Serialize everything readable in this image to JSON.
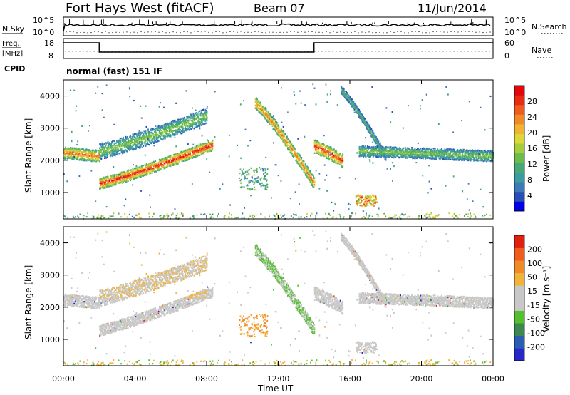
{
  "header": {
    "title": "Fort Hays West (fitACF)",
    "beam": "Beam 07",
    "date": "11/Jun/2014"
  },
  "nsky_panel": {
    "left_label": "N.Sky",
    "left_ticks": [
      "10^5",
      "10^0"
    ],
    "right_label": "N.Search",
    "right_ticks": [
      "10^5",
      "10^0"
    ]
  },
  "freq_panel": {
    "left_label_line1": "Freq.",
    "left_label_line2": "[MHz]",
    "left_ticks": [
      "18",
      "8"
    ],
    "right_label": "Nave",
    "right_ticks": [
      "60",
      "0"
    ],
    "cpid_label": "CPID",
    "cpid_text": "normal (fast) 151 IF"
  },
  "chart_data": [
    {
      "type": "heatmap",
      "name": "power",
      "ylabel": "Slant Range [km]",
      "yticks": [
        "4000",
        "3000",
        "2000",
        "1000"
      ],
      "ylim": [
        180,
        4500
      ],
      "xlim": [
        0,
        24
      ],
      "colorbar": {
        "label": "Power [dB]",
        "ticks": [
          "28",
          "24",
          "20",
          "16",
          "12",
          "8",
          "4"
        ],
        "colors": [
          "#0000e8",
          "#2850b4",
          "#3c7ab8",
          "#3c9ca0",
          "#4aa876",
          "#6cbc4c",
          "#a6cd3c",
          "#dcd83a",
          "#f0b432",
          "#f08a28",
          "#ee5c1e",
          "#e82c14",
          "#e00808"
        ]
      },
      "bands": [
        {
          "t0": 0.0,
          "t1": 2.0,
          "r_start": 2250,
          "r_end": 2150,
          "width": 280,
          "peak": 24
        },
        {
          "t0": 2.0,
          "t1": 8.3,
          "r_start": 1300,
          "r_end": 2500,
          "width": 260,
          "peak": 28
        },
        {
          "t0": 2.0,
          "t1": 8.0,
          "r_start": 2300,
          "r_end": 3400,
          "width": 380,
          "peak": 14
        },
        {
          "t0": 10.7,
          "t1": 14.0,
          "r_start": 3800,
          "r_end": 1300,
          "width": 280,
          "peak": 24
        },
        {
          "t0": 14.0,
          "t1": 15.6,
          "r_start": 2450,
          "r_end": 2000,
          "width": 320,
          "peak": 27
        },
        {
          "t0": 15.5,
          "t1": 18.0,
          "r_start": 4200,
          "r_end": 2100,
          "width": 180,
          "peak": 12
        },
        {
          "t0": 16.5,
          "t1": 24.0,
          "r_start": 2300,
          "r_end": 2150,
          "width": 260,
          "peak": 14
        }
      ]
    },
    {
      "type": "heatmap",
      "name": "velocity",
      "xlabel": "Time UT",
      "ylabel": "Slant Range [km]",
      "yticks": [
        "4000",
        "3000",
        "2000",
        "1000"
      ],
      "ylim": [
        180,
        4500
      ],
      "xlim": [
        0,
        24
      ],
      "xticks": [
        "00:00",
        "04:00",
        "08:00",
        "12:00",
        "16:00",
        "20:00",
        "00:00"
      ],
      "colorbar": {
        "label": "Velocity [m s⁻¹]",
        "ticks": [
          "200",
          "100",
          "50",
          "15",
          "-15",
          "-50",
          "-100",
          "-200"
        ],
        "colors": [
          "#2828c8",
          "#2c5cb4",
          "#3c8850",
          "#54c030",
          "#c8c8c8",
          "#c8c8c8",
          "#f0b43c",
          "#f08c28",
          "#ee5c1e",
          "#e02010"
        ]
      }
    }
  ]
}
